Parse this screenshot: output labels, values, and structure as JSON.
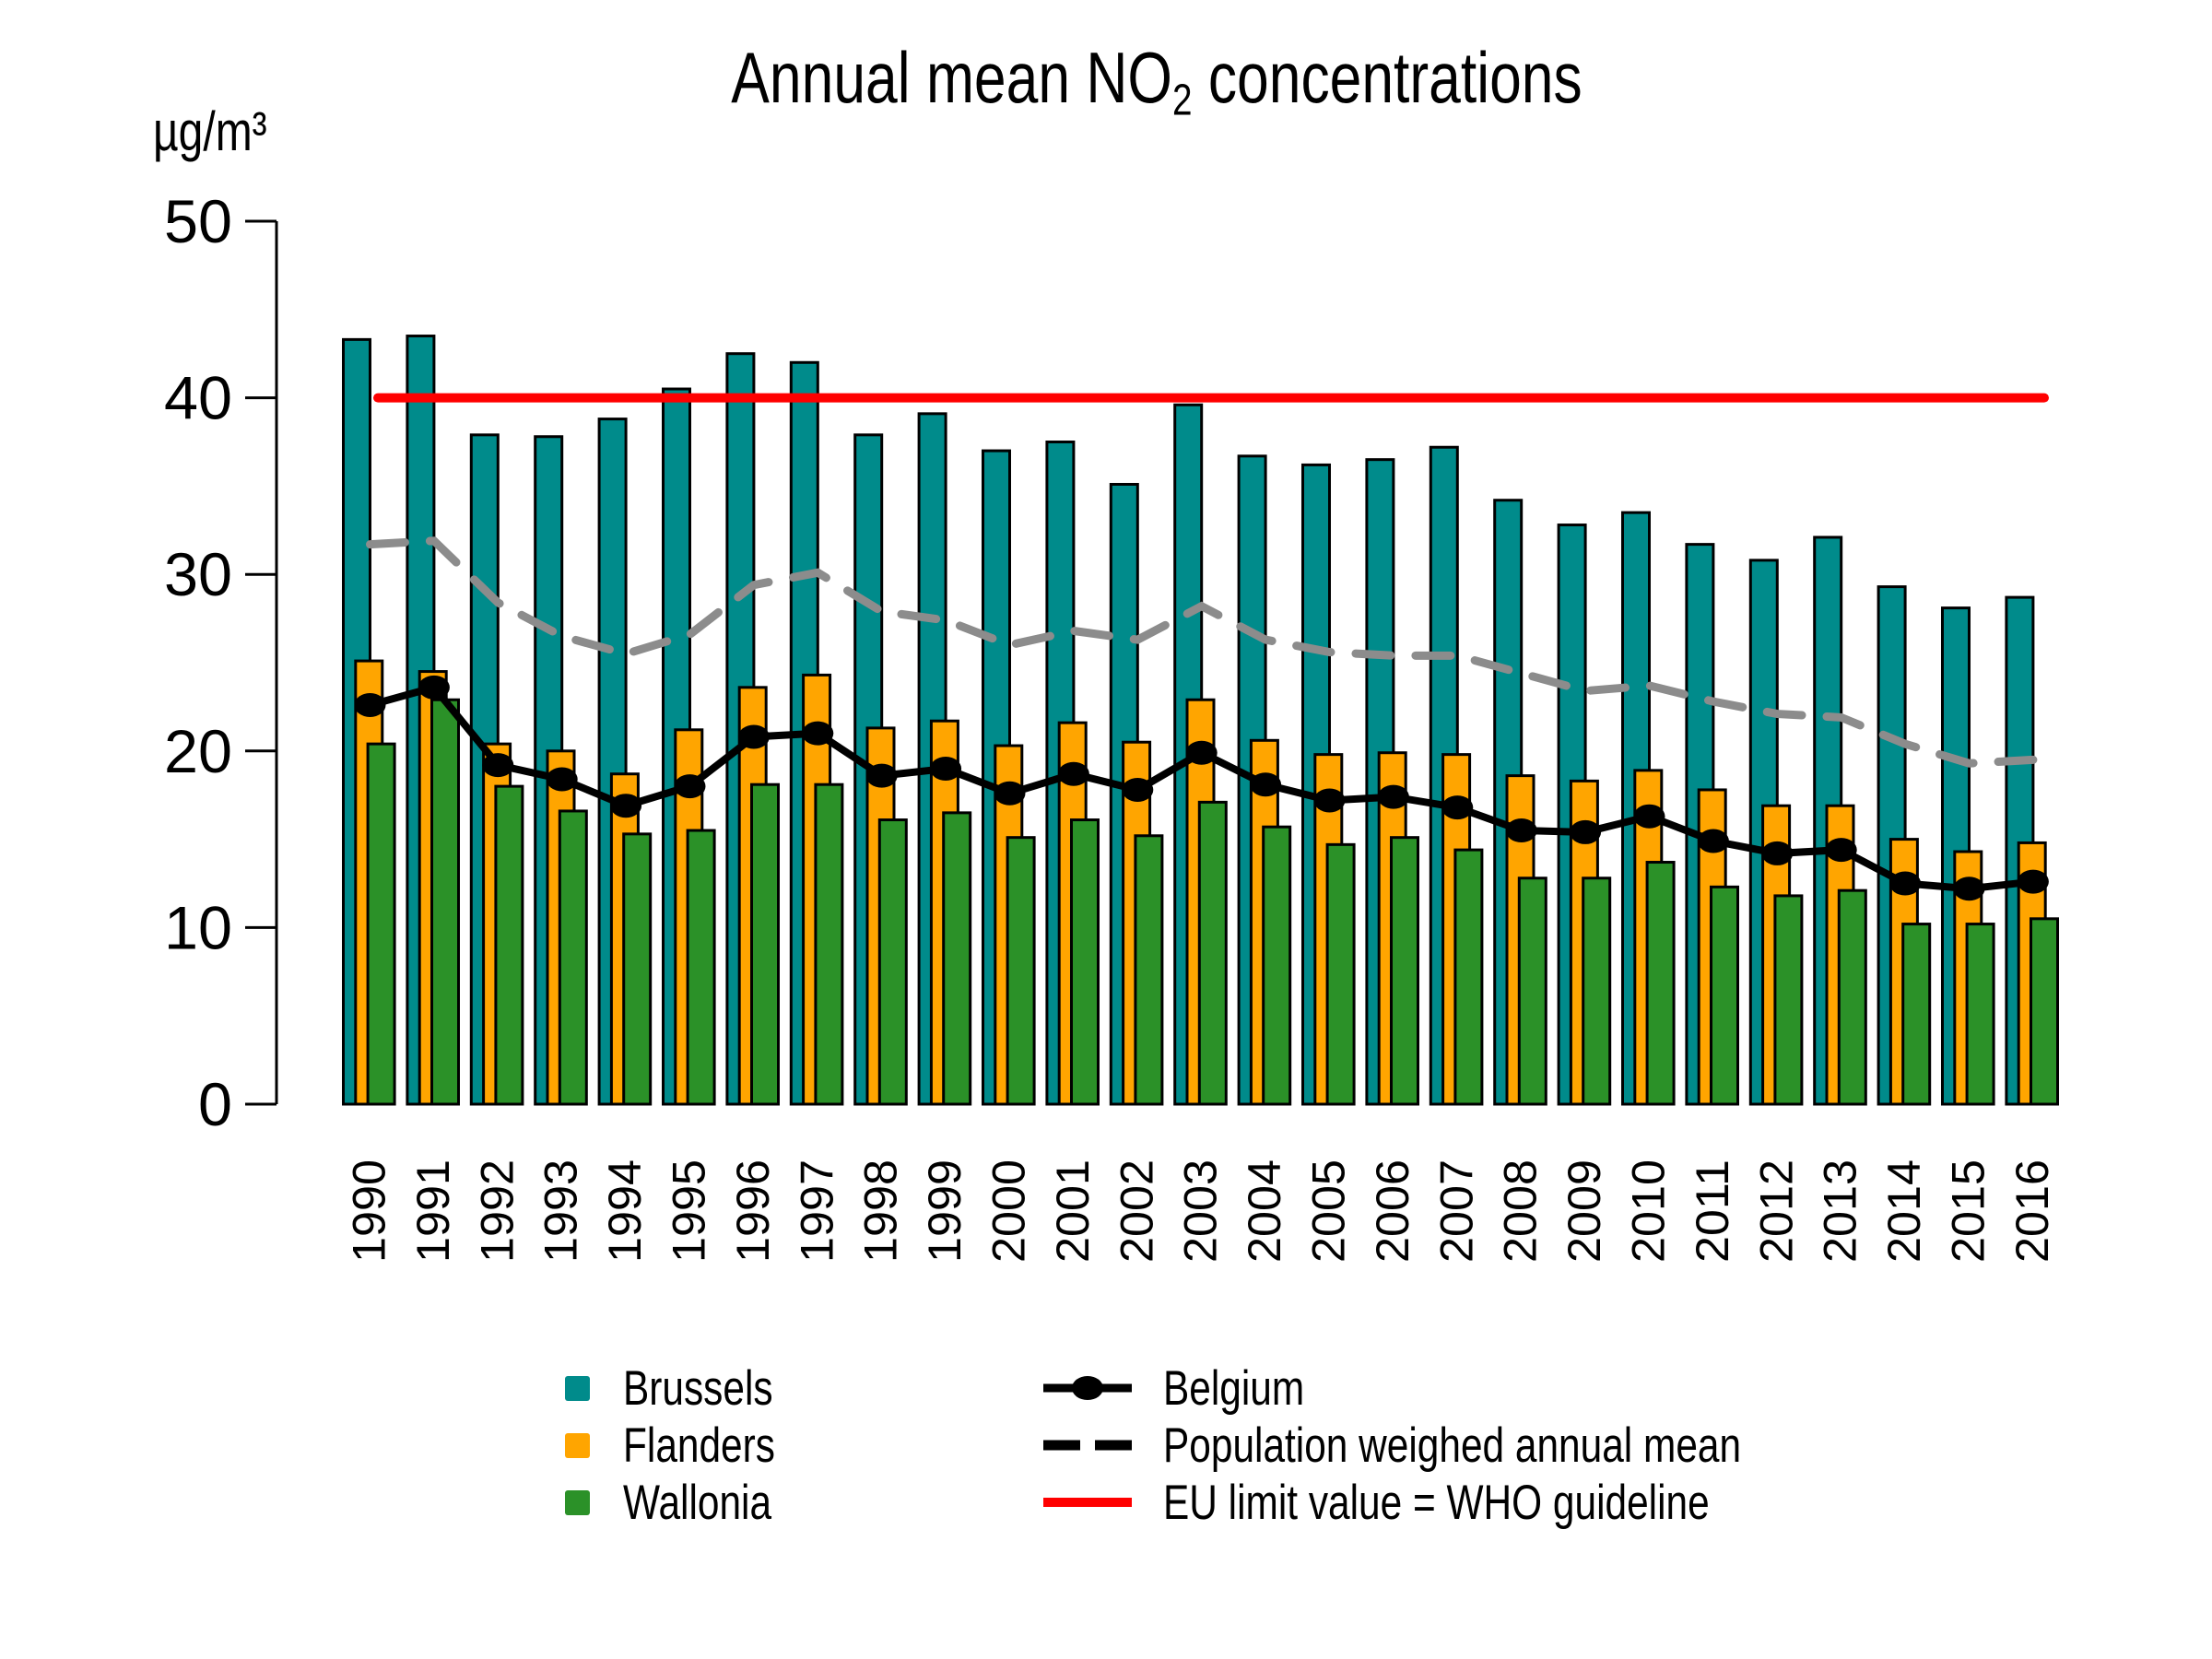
{
  "title": {
    "prefix": "Annual mean NO",
    "sub": "2",
    "suffix": " concentrations"
  },
  "y_axis": {
    "unit_label": "µg/m³",
    "ticks": [
      0,
      10,
      20,
      30,
      40,
      50
    ],
    "ylim": [
      0,
      50
    ]
  },
  "chart_data": {
    "type": "bar",
    "title": "Annual mean NO2 concentrations",
    "ylabel": "µg/m³",
    "ylim": [
      0,
      50
    ],
    "grid": false,
    "legend_position": "bottom",
    "categories": [
      "1990",
      "1991",
      "1992",
      "1993",
      "1994",
      "1995",
      "1996",
      "1997",
      "1998",
      "1999",
      "2000",
      "2001",
      "2002",
      "2003",
      "2004",
      "2005",
      "2006",
      "2007",
      "2008",
      "2009",
      "2010",
      "2011",
      "2012",
      "2013",
      "2014",
      "2015",
      "2016"
    ],
    "series": [
      {
        "name": "Brussels",
        "type": "bar",
        "color": "#008B8B",
        "values": [
          43.3,
          43.5,
          37.9,
          37.8,
          38.8,
          40.5,
          42.5,
          42.0,
          37.9,
          39.1,
          37.0,
          37.5,
          35.1,
          39.6,
          36.7,
          36.2,
          36.5,
          37.2,
          34.2,
          32.8,
          33.5,
          31.7,
          30.8,
          32.1,
          29.3,
          28.1,
          28.7
        ]
      },
      {
        "name": "Flanders",
        "type": "bar",
        "color": "#FFA500",
        "values": [
          25.1,
          24.5,
          20.4,
          20.0,
          18.7,
          21.2,
          23.6,
          24.3,
          21.3,
          21.7,
          20.3,
          21.6,
          20.5,
          22.9,
          20.6,
          19.8,
          19.9,
          19.8,
          18.6,
          18.3,
          18.9,
          17.8,
          16.9,
          16.9,
          15.0,
          14.3,
          14.8
        ]
      },
      {
        "name": "Wallonia",
        "type": "bar",
        "color": "#2B9128",
        "values": [
          20.4,
          22.9,
          18.0,
          16.6,
          15.3,
          15.5,
          18.1,
          18.1,
          16.1,
          16.5,
          15.1,
          16.1,
          15.2,
          17.1,
          15.7,
          14.7,
          15.1,
          14.4,
          12.8,
          12.8,
          13.7,
          12.3,
          11.8,
          12.1,
          10.2,
          10.2,
          10.5
        ]
      },
      {
        "name": "Belgium",
        "type": "line",
        "color": "#000000",
        "marker": "ellipse",
        "values": [
          22.6,
          23.6,
          19.2,
          18.4,
          16.9,
          18.0,
          20.8,
          21.0,
          18.6,
          19.0,
          17.6,
          18.7,
          17.8,
          19.9,
          18.1,
          17.2,
          17.4,
          16.8,
          15.5,
          15.4,
          16.3,
          14.9,
          14.2,
          14.4,
          12.5,
          12.2,
          12.6
        ]
      },
      {
        "name": "Population weighed annual mean",
        "type": "dashed-line",
        "color": "#8C8C8C",
        "values": [
          31.7,
          31.9,
          28.4,
          26.5,
          25.5,
          26.6,
          29.4,
          30.1,
          27.9,
          27.4,
          26.0,
          26.8,
          26.3,
          28.2,
          26.3,
          25.6,
          25.4,
          25.4,
          24.4,
          23.4,
          23.7,
          22.8,
          22.1,
          21.9,
          20.4,
          19.3,
          19.5
        ]
      },
      {
        "name": "EU limit value = WHO guideline",
        "type": "reference-line",
        "color": "#FF0000",
        "value": 40
      }
    ]
  },
  "legend": {
    "brussels": "Brussels",
    "flanders": "Flanders",
    "wallonia": "Wallonia",
    "belgium": "Belgium",
    "population": "Population weighed annual mean",
    "eu_limit": "EU limit value = WHO guideline"
  }
}
